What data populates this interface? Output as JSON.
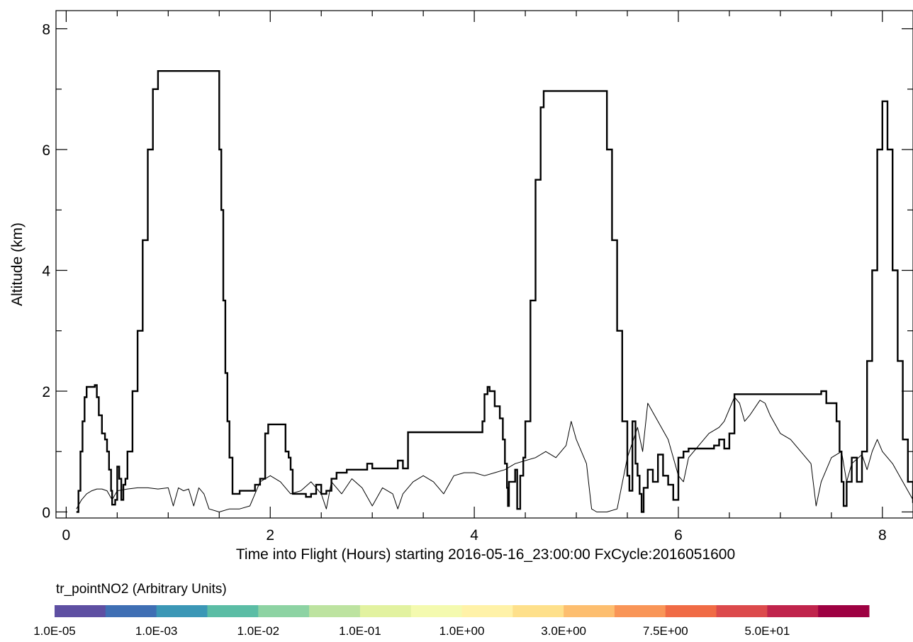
{
  "chart_data": {
    "type": "line",
    "xlabel": "Time into Flight (Hours) starting 2016-05-16_23:00:00  FxCycle:2016051600",
    "ylabel": "Altitude (km)",
    "xlim": [
      -0.1,
      8.3
    ],
    "ylim": [
      -0.1,
      8.3
    ],
    "x_ticks": [
      0,
      2,
      4,
      6,
      8
    ],
    "y_ticks": [
      0,
      2,
      4,
      6,
      8
    ],
    "grid": false,
    "series": [
      {
        "style": "thick-step",
        "points": [
          [
            0.1,
            0.0
          ],
          [
            0.12,
            0.35
          ],
          [
            0.14,
            1.0
          ],
          [
            0.16,
            1.5
          ],
          [
            0.18,
            1.9
          ],
          [
            0.2,
            2.07
          ],
          [
            0.28,
            2.1
          ],
          [
            0.3,
            1.9
          ],
          [
            0.32,
            1.6
          ],
          [
            0.35,
            1.3
          ],
          [
            0.38,
            1.2
          ],
          [
            0.4,
            1.0
          ],
          [
            0.42,
            0.7
          ],
          [
            0.44,
            0.35
          ],
          [
            0.45,
            0.12
          ],
          [
            0.48,
            0.2
          ],
          [
            0.5,
            0.75
          ],
          [
            0.52,
            0.55
          ],
          [
            0.54,
            0.2
          ],
          [
            0.56,
            0.45
          ],
          [
            0.58,
            0.55
          ],
          [
            0.6,
            1.0
          ],
          [
            0.65,
            2.0
          ],
          [
            0.7,
            3.0
          ],
          [
            0.75,
            4.5
          ],
          [
            0.8,
            6.0
          ],
          [
            0.85,
            7.0
          ],
          [
            0.9,
            7.3
          ],
          [
            1.45,
            7.3
          ],
          [
            1.5,
            6.0
          ],
          [
            1.52,
            5.0
          ],
          [
            1.54,
            3.5
          ],
          [
            1.56,
            2.3
          ],
          [
            1.58,
            1.5
          ],
          [
            1.6,
            0.9
          ],
          [
            1.63,
            0.3
          ],
          [
            1.7,
            0.35
          ],
          [
            1.8,
            0.35
          ],
          [
            1.85,
            0.45
          ],
          [
            1.9,
            0.55
          ],
          [
            1.95,
            1.3
          ],
          [
            1.98,
            1.45
          ],
          [
            2.1,
            1.45
          ],
          [
            2.15,
            1.0
          ],
          [
            2.18,
            0.9
          ],
          [
            2.2,
            0.7
          ],
          [
            2.22,
            0.3
          ],
          [
            2.3,
            0.3
          ],
          [
            2.35,
            0.25
          ],
          [
            2.4,
            0.3
          ],
          [
            2.45,
            0.45
          ],
          [
            2.5,
            0.3
          ],
          [
            2.55,
            0.35
          ],
          [
            2.6,
            0.55
          ],
          [
            2.65,
            0.65
          ],
          [
            2.75,
            0.7
          ],
          [
            2.9,
            0.7
          ],
          [
            2.95,
            0.8
          ],
          [
            3.0,
            0.72
          ],
          [
            3.2,
            0.72
          ],
          [
            3.25,
            0.85
          ],
          [
            3.3,
            0.72
          ],
          [
            3.35,
            1.32
          ],
          [
            4.05,
            1.32
          ],
          [
            4.08,
            1.5
          ],
          [
            4.1,
            1.95
          ],
          [
            4.13,
            2.07
          ],
          [
            4.15,
            2.0
          ],
          [
            4.2,
            1.75
          ],
          [
            4.25,
            1.55
          ],
          [
            4.28,
            1.2
          ],
          [
            4.3,
            0.8
          ],
          [
            4.32,
            0.4
          ],
          [
            4.33,
            0.1
          ],
          [
            4.34,
            0.5
          ],
          [
            4.4,
            0.7
          ],
          [
            4.42,
            0.05
          ],
          [
            4.45,
            0.6
          ],
          [
            4.48,
            0.9
          ],
          [
            4.5,
            1.5
          ],
          [
            4.55,
            3.5
          ],
          [
            4.6,
            5.5
          ],
          [
            4.65,
            6.7
          ],
          [
            4.68,
            6.97
          ],
          [
            5.25,
            6.97
          ],
          [
            5.3,
            6.0
          ],
          [
            5.35,
            4.5
          ],
          [
            5.4,
            3.0
          ],
          [
            5.45,
            1.5
          ],
          [
            5.5,
            0.6
          ],
          [
            5.52,
            0.35
          ],
          [
            5.55,
            1.5
          ],
          [
            5.58,
            0.8
          ],
          [
            5.6,
            0.6
          ],
          [
            5.62,
            0.3
          ],
          [
            5.64,
            0.0
          ],
          [
            5.66,
            0.4
          ],
          [
            5.7,
            0.7
          ],
          [
            5.75,
            0.5
          ],
          [
            5.8,
            0.95
          ],
          [
            5.85,
            0.6
          ],
          [
            5.9,
            0.45
          ],
          [
            5.95,
            0.2
          ],
          [
            6.0,
            0.9
          ],
          [
            6.05,
            1.0
          ],
          [
            6.1,
            1.05
          ],
          [
            6.3,
            1.05
          ],
          [
            6.35,
            1.1
          ],
          [
            6.4,
            1.2
          ],
          [
            6.45,
            1.05
          ],
          [
            6.5,
            1.3
          ],
          [
            6.55,
            1.95
          ],
          [
            7.35,
            1.95
          ],
          [
            7.4,
            2.0
          ],
          [
            7.45,
            1.8
          ],
          [
            7.5,
            1.8
          ],
          [
            7.55,
            1.5
          ],
          [
            7.58,
            1.0
          ],
          [
            7.6,
            0.5
          ],
          [
            7.62,
            0.1
          ],
          [
            7.65,
            0.5
          ],
          [
            7.7,
            0.9
          ],
          [
            7.75,
            0.5
          ],
          [
            7.8,
            1.0
          ],
          [
            7.85,
            2.5
          ],
          [
            7.9,
            4.0
          ],
          [
            7.95,
            6.0
          ],
          [
            8.0,
            6.8
          ],
          [
            8.03,
            6.8
          ],
          [
            8.05,
            6.0
          ],
          [
            8.1,
            4.0
          ],
          [
            8.15,
            2.5
          ],
          [
            8.2,
            1.2
          ],
          [
            8.25,
            0.5
          ],
          [
            8.3,
            0.15
          ]
        ]
      },
      {
        "style": "thin",
        "points": [
          [
            0.1,
            0.05
          ],
          [
            0.15,
            0.2
          ],
          [
            0.2,
            0.3
          ],
          [
            0.25,
            0.35
          ],
          [
            0.3,
            0.38
          ],
          [
            0.35,
            0.38
          ],
          [
            0.4,
            0.35
          ],
          [
            0.45,
            0.2
          ],
          [
            0.5,
            0.35
          ],
          [
            0.6,
            0.38
          ],
          [
            0.7,
            0.4
          ],
          [
            0.8,
            0.4
          ],
          [
            0.9,
            0.38
          ],
          [
            1.0,
            0.4
          ],
          [
            1.05,
            0.1
          ],
          [
            1.1,
            0.4
          ],
          [
            1.15,
            0.35
          ],
          [
            1.2,
            0.38
          ],
          [
            1.25,
            0.1
          ],
          [
            1.3,
            0.4
          ],
          [
            1.35,
            0.3
          ],
          [
            1.4,
            0.05
          ],
          [
            1.5,
            0.0
          ],
          [
            1.6,
            0.05
          ],
          [
            1.7,
            0.05
          ],
          [
            1.8,
            0.1
          ],
          [
            1.9,
            0.5
          ],
          [
            2.0,
            0.6
          ],
          [
            2.1,
            0.5
          ],
          [
            2.2,
            0.3
          ],
          [
            2.3,
            0.35
          ],
          [
            2.4,
            0.5
          ],
          [
            2.5,
            0.3
          ],
          [
            2.55,
            0.05
          ],
          [
            2.6,
            0.5
          ],
          [
            2.7,
            0.3
          ],
          [
            2.8,
            0.55
          ],
          [
            2.9,
            0.4
          ],
          [
            3.0,
            0.1
          ],
          [
            3.1,
            0.4
          ],
          [
            3.2,
            0.3
          ],
          [
            3.25,
            0.05
          ],
          [
            3.3,
            0.3
          ],
          [
            3.4,
            0.5
          ],
          [
            3.5,
            0.6
          ],
          [
            3.6,
            0.5
          ],
          [
            3.7,
            0.3
          ],
          [
            3.8,
            0.6
          ],
          [
            3.9,
            0.65
          ],
          [
            4.0,
            0.65
          ],
          [
            4.1,
            0.6
          ],
          [
            4.2,
            0.65
          ],
          [
            4.3,
            0.7
          ],
          [
            4.4,
            0.8
          ],
          [
            4.5,
            0.85
          ],
          [
            4.6,
            0.9
          ],
          [
            4.7,
            1.0
          ],
          [
            4.8,
            0.9
          ],
          [
            4.9,
            1.1
          ],
          [
            4.95,
            1.5
          ],
          [
            5.0,
            1.2
          ],
          [
            5.05,
            1.0
          ],
          [
            5.1,
            0.8
          ],
          [
            5.15,
            0.05
          ],
          [
            5.2,
            0.0
          ],
          [
            5.3,
            0.0
          ],
          [
            5.4,
            0.05
          ],
          [
            5.5,
            0.9
          ],
          [
            5.6,
            1.4
          ],
          [
            5.65,
            1.0
          ],
          [
            5.7,
            1.8
          ],
          [
            5.8,
            1.5
          ],
          [
            5.9,
            1.2
          ],
          [
            6.0,
            0.6
          ],
          [
            6.05,
            0.5
          ],
          [
            6.1,
            0.9
          ],
          [
            6.2,
            1.1
          ],
          [
            6.3,
            1.3
          ],
          [
            6.4,
            1.4
          ],
          [
            6.45,
            1.5
          ],
          [
            6.55,
            1.9
          ],
          [
            6.6,
            1.8
          ],
          [
            6.65,
            1.5
          ],
          [
            6.7,
            1.6
          ],
          [
            6.8,
            1.85
          ],
          [
            6.85,
            1.8
          ],
          [
            6.9,
            1.6
          ],
          [
            7.0,
            1.3
          ],
          [
            7.1,
            1.2
          ],
          [
            7.2,
            1.0
          ],
          [
            7.3,
            0.8
          ],
          [
            7.35,
            0.1
          ],
          [
            7.4,
            0.5
          ],
          [
            7.5,
            0.9
          ],
          [
            7.6,
            1.0
          ],
          [
            7.65,
            0.5
          ],
          [
            7.7,
            0.8
          ],
          [
            7.8,
            0.95
          ],
          [
            7.85,
            0.7
          ],
          [
            7.9,
            1.0
          ],
          [
            7.95,
            1.2
          ],
          [
            8.0,
            1.0
          ],
          [
            8.1,
            0.8
          ],
          [
            8.2,
            0.5
          ],
          [
            8.3,
            0.2
          ]
        ]
      }
    ]
  },
  "colorbar": {
    "title": "tr_pointNO2 (Arbitrary Units)",
    "colors": [
      "#5E4FA2",
      "#3F6FB4",
      "#3B97B6",
      "#5BBDA5",
      "#8DD3A3",
      "#BDE3A0",
      "#E2F2A0",
      "#F4FAAF",
      "#FFF2A8",
      "#FEE08B",
      "#FDBE6F",
      "#F99557",
      "#F06B45",
      "#DC4A4C",
      "#C0244C",
      "#9E0142"
    ],
    "labels": [
      "1.0E-05",
      "1.0E-03",
      "1.0E-02",
      "1.0E-01",
      "1.0E+00",
      "3.0E+00",
      "7.5E+00",
      "5.0E+01"
    ]
  }
}
